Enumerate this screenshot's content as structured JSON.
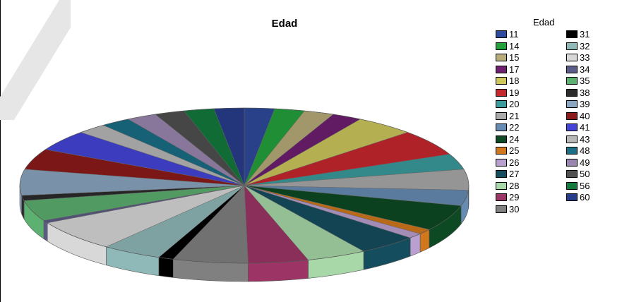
{
  "chart_data": {
    "type": "pie",
    "title": "Edad",
    "legend_title": "Edad",
    "legend_placement": "right",
    "three_d": true,
    "start_angle": "top",
    "direction": "clockwise",
    "slices": [
      {
        "label": "11",
        "value": 2,
        "color": "#2e4a9c"
      },
      {
        "label": "14",
        "value": 2,
        "color": "#23a13c"
      },
      {
        "label": "15",
        "value": 2,
        "color": "#b8ac7a"
      },
      {
        "label": "17",
        "value": 2,
        "color": "#6e1f70"
      },
      {
        "label": "18",
        "value": 4,
        "color": "#cdc75c"
      },
      {
        "label": "19",
        "value": 5,
        "color": "#c7282d"
      },
      {
        "label": "20",
        "value": 3,
        "color": "#3a9c9c"
      },
      {
        "label": "21",
        "value": 4,
        "color": "#a9a9a9"
      },
      {
        "label": "22",
        "value": 3,
        "color": "#668cb3"
      },
      {
        "label": "24",
        "value": 5,
        "color": "#0d4a23"
      },
      {
        "label": "25",
        "value": 1,
        "color": "#d2781c"
      },
      {
        "label": "26",
        "value": 1,
        "color": "#b9a0d0"
      },
      {
        "label": "27",
        "value": 4,
        "color": "#144d5e"
      },
      {
        "label": "28",
        "value": 4,
        "color": "#a8d8a8"
      },
      {
        "label": "29",
        "value": 4,
        "color": "#9c3565"
      },
      {
        "label": "30",
        "value": 5,
        "color": "#808080"
      },
      {
        "label": "31",
        "value": 1,
        "color": "#000000"
      },
      {
        "label": "32",
        "value": 4,
        "color": "#8fb8b8"
      },
      {
        "label": "33",
        "value": 6,
        "color": "#d8d8d8"
      },
      {
        "label": "34",
        "value": 0.5,
        "color": "#5c5c88"
      },
      {
        "label": "35",
        "value": 4,
        "color": "#5cb070"
      },
      {
        "label": "38",
        "value": 1,
        "color": "#2b2b2b"
      },
      {
        "label": "39",
        "value": 5,
        "color": "#8aa6c0"
      },
      {
        "label": "40",
        "value": 4,
        "color": "#8c1a1a"
      },
      {
        "label": "41",
        "value": 4,
        "color": "#4444d8"
      },
      {
        "label": "43",
        "value": 2,
        "color": "#b8b8b8"
      },
      {
        "label": "48",
        "value": 2,
        "color": "#1a6e86"
      },
      {
        "label": "49",
        "value": 2,
        "color": "#9a86b0"
      },
      {
        "label": "50",
        "value": 2,
        "color": "#505050"
      },
      {
        "label": "56",
        "value": 2,
        "color": "#127a3c"
      },
      {
        "label": "60",
        "value": 2,
        "color": "#283c8c"
      }
    ]
  }
}
